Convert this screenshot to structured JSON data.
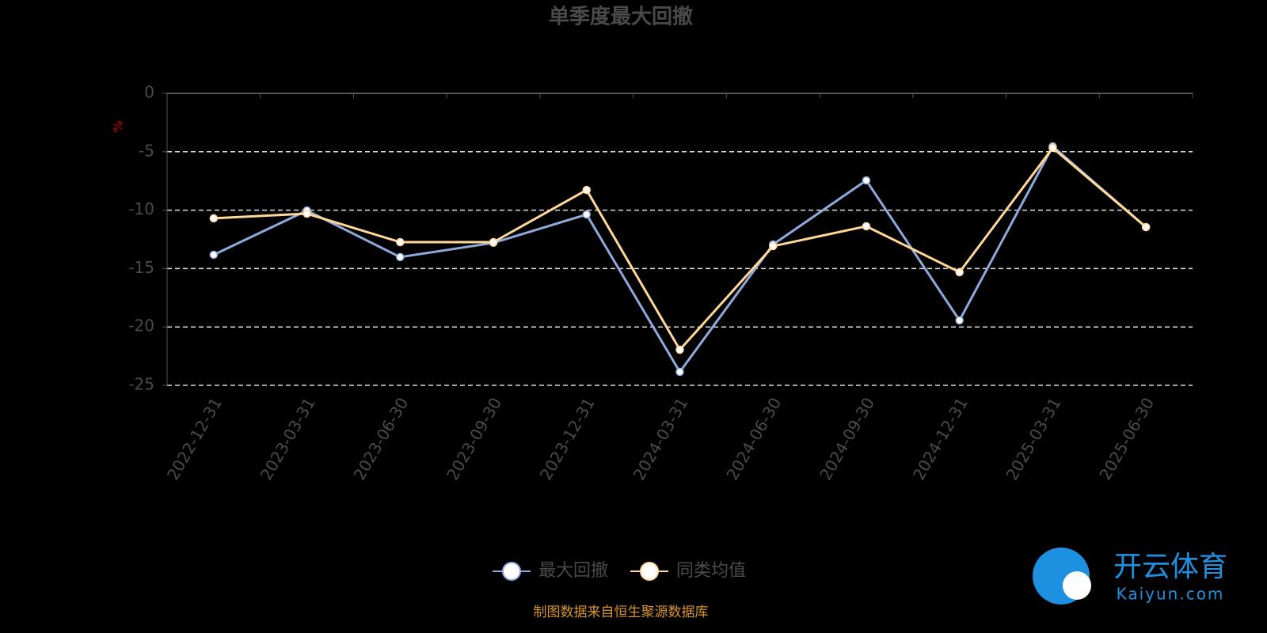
{
  "chart_data": {
    "type": "line",
    "title": "单季度最大回撤",
    "y_label": "%",
    "categories": [
      "2022-12-31",
      "2023-03-31",
      "2023-06-30",
      "2023-09-30",
      "2023-12-31",
      "2024-03-31",
      "2024-06-30",
      "2024-09-30",
      "2024-12-31",
      "2025-03-31",
      "2025-06-30"
    ],
    "series": [
      {
        "name": "最大回撤",
        "color": "#8eaadb",
        "values": [
          -13.82,
          -10.03,
          -14.02,
          -12.8,
          -10.37,
          -23.85,
          -12.94,
          -7.45,
          -19.44,
          -4.54,
          -11.45
        ]
      },
      {
        "name": "同类均值",
        "color": "#ffd797",
        "values": [
          -10.7,
          -10.3,
          -12.74,
          -12.74,
          -8.27,
          -21.95,
          -13.08,
          -11.38,
          -15.31,
          -4.67,
          -11.45
        ]
      }
    ],
    "ylim": [
      -25,
      0
    ],
    "yticks": [
      0,
      -5,
      -10,
      -15,
      -20,
      -25
    ],
    "grid": true,
    "source": "制图数据来自恒生聚源数据库",
    "watermark": {
      "title": "开云体育",
      "subtitle": "Kaiyun.com"
    }
  }
}
